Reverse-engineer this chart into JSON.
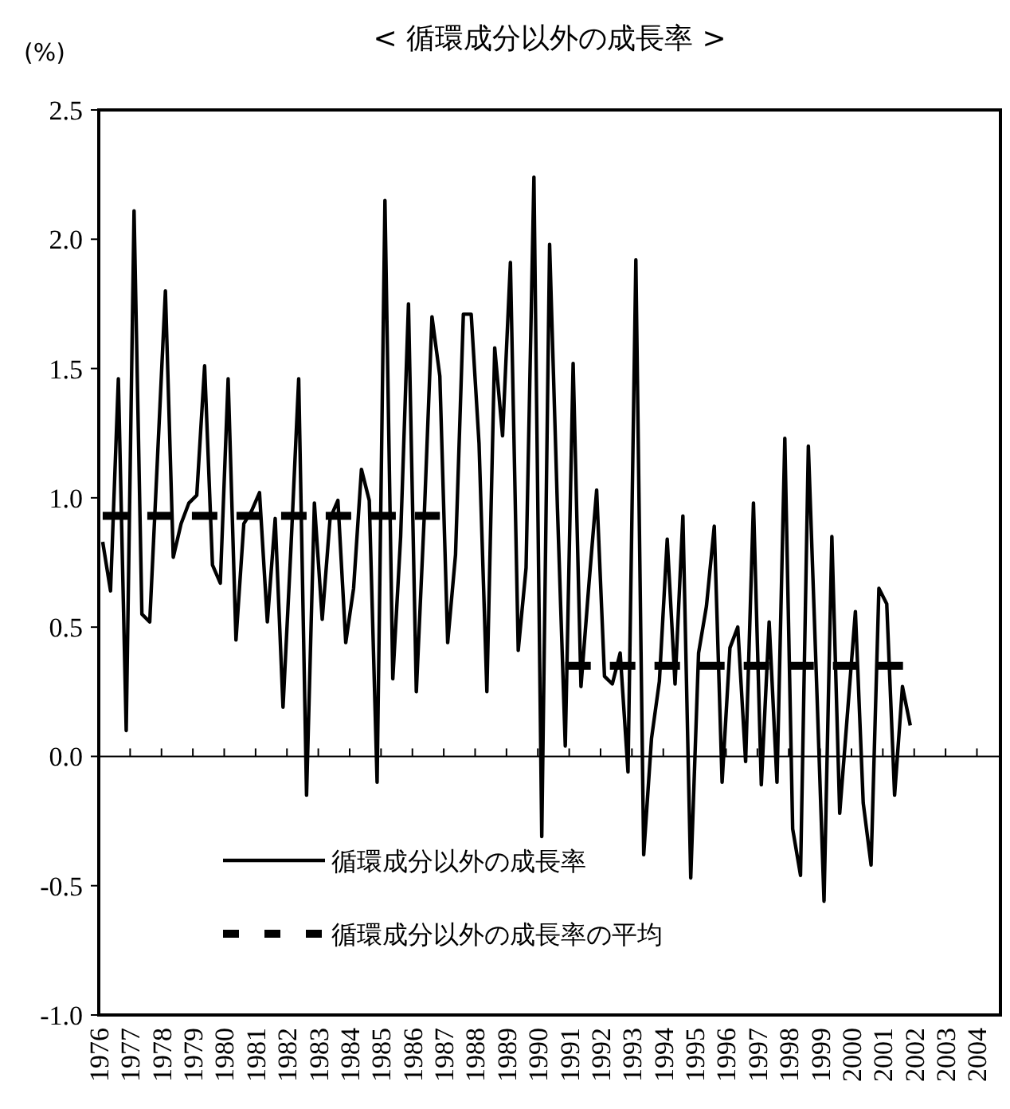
{
  "chart_data": {
    "type": "line",
    "title": "< 循環成分以外の成長率 >",
    "ylabel": "(%)",
    "x": [
      1976.125,
      1976.375,
      1976.625,
      1976.875,
      1977.125,
      1977.375,
      1977.625,
      1977.875,
      1978.125,
      1978.375,
      1978.625,
      1978.875,
      1979.125,
      1979.375,
      1979.625,
      1979.875,
      1980.125,
      1980.375,
      1980.625,
      1980.875,
      1981.125,
      1981.375,
      1981.625,
      1981.875,
      1982.125,
      1982.375,
      1982.625,
      1982.875,
      1983.125,
      1983.375,
      1983.625,
      1983.875,
      1984.125,
      1984.375,
      1984.625,
      1984.875,
      1985.125,
      1985.375,
      1985.625,
      1985.875,
      1986.125,
      1986.375,
      1986.625,
      1986.875,
      1987.125,
      1987.375,
      1987.625,
      1987.875,
      1988.125,
      1988.375,
      1988.625,
      1988.875,
      1989.125,
      1989.375,
      1989.625,
      1989.875,
      1990.125,
      1990.375,
      1990.625,
      1990.875,
      1991.125,
      1991.375,
      1991.625,
      1991.875,
      1992.125,
      1992.375,
      1992.625,
      1992.875,
      1993.125,
      1993.375,
      1993.625,
      1993.875,
      1994.125,
      1994.375,
      1994.625,
      1994.875,
      1995.125,
      1995.375,
      1995.625,
      1995.875,
      1996.125,
      1996.375,
      1996.625,
      1996.875,
      1997.125,
      1997.375,
      1997.625,
      1997.875,
      1998.125,
      1998.375,
      1998.625,
      1998.875,
      1999.125,
      1999.375,
      1999.625,
      1999.875,
      2000.125,
      2000.375,
      2000.625,
      2000.875,
      2001.125,
      2001.375,
      2001.625,
      2001.875
    ],
    "series": [
      {
        "name": "循環成分以外の成長率",
        "color": "#000000",
        "line_style": "solid",
        "values": [
          0.83,
          0.64,
          1.46,
          0.1,
          2.11,
          0.55,
          0.52,
          1.16,
          1.8,
          0.77,
          0.9,
          0.98,
          1.01,
          1.51,
          0.74,
          0.67,
          1.46,
          0.45,
          0.9,
          0.95,
          1.02,
          0.52,
          0.92,
          0.19,
          0.8,
          1.46,
          -0.15,
          0.98,
          0.53,
          0.92,
          0.99,
          0.44,
          0.65,
          1.11,
          0.99,
          -0.1,
          2.15,
          0.3,
          0.85,
          1.75,
          0.25,
          0.92,
          1.7,
          1.47,
          0.44,
          0.78,
          1.71,
          1.71,
          1.21,
          0.25,
          1.58,
          1.24,
          1.91,
          0.41,
          0.73,
          2.24,
          -0.31,
          1.98,
          0.96,
          0.04,
          1.52,
          0.27,
          0.66,
          1.03,
          0.31,
          0.28,
          0.4,
          -0.06,
          1.92,
          -0.38,
          0.07,
          0.29,
          0.84,
          0.28,
          0.93,
          -0.47,
          0.4,
          0.58,
          0.89,
          -0.1,
          0.42,
          0.5,
          -0.02,
          0.98,
          -0.11,
          0.52,
          -0.1,
          1.23,
          -0.28,
          -0.46,
          1.2,
          0.33,
          -0.56,
          0.85,
          -0.22,
          0.17,
          0.56,
          -0.18,
          -0.42,
          0.65,
          0.59,
          -0.15,
          0.27,
          0.12
        ]
      },
      {
        "name": "循環成分以外の成長率の平均",
        "color": "#000000",
        "line_style": "dashed",
        "x": [
          1976.125,
          1986.875,
          null,
          1990.875,
          2001.875
        ],
        "values": [
          0.93,
          0.93,
          null,
          0.35,
          0.35
        ]
      }
    ],
    "xlim": [
      1976,
      2004.75
    ],
    "xticks": [
      1976,
      1977,
      1978,
      1979,
      1980,
      1981,
      1982,
      1983,
      1984,
      1985,
      1986,
      1987,
      1988,
      1989,
      1990,
      1991,
      1992,
      1993,
      1994,
      1995,
      1996,
      1997,
      1998,
      1999,
      2000,
      2001,
      2002,
      2003,
      2004
    ],
    "ylim": [
      -1.0,
      2.5
    ],
    "yticks": [
      {
        "value": -1.0,
        "label": "-1.0"
      },
      {
        "value": -0.5,
        "label": "-0.5"
      },
      {
        "value": 0,
        "label": "0.0"
      },
      {
        "value": 0.5,
        "label": "0.5"
      },
      {
        "value": 1.0,
        "label": "1.0"
      },
      {
        "value": 1.5,
        "label": "1.5"
      },
      {
        "value": 2.0,
        "label": "2.0"
      },
      {
        "value": 2.5,
        "label": "2.5"
      }
    ],
    "legend": "bottom left",
    "marker": "none"
  }
}
